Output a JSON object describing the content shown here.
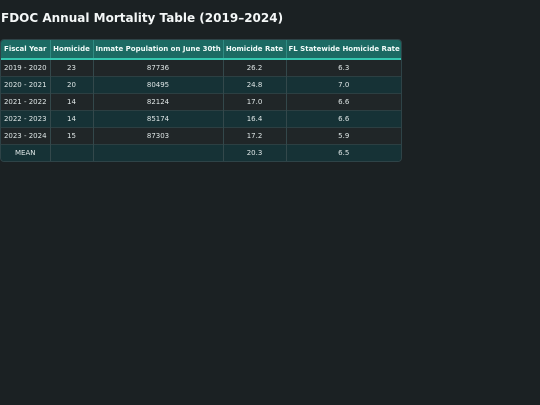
{
  "page": {
    "title": "FDOC Annual Mortality Table (2019–2024)"
  },
  "table": {
    "headers": [
      "Fiscal Year",
      "Homicide",
      "Inmate Population on June 30th",
      "Homicide Rate",
      "FL Statewide Homicide Rate"
    ],
    "rows": [
      [
        "2019 - 2020",
        "23",
        "87736",
        "26.2",
        "6.3"
      ],
      [
        "2020 - 2021",
        "20",
        "80495",
        "24.8",
        "7.0"
      ],
      [
        "2021 - 2022",
        "14",
        "82124",
        "17.0",
        "6.6"
      ],
      [
        "2022 - 2023",
        "14",
        "85174",
        "16.4",
        "6.6"
      ],
      [
        "2023 - 2024",
        "15",
        "87303",
        "17.2",
        "5.9"
      ],
      [
        "MEAN",
        "",
        "",
        "20.3",
        "6.5"
      ]
    ]
  },
  "colors": {
    "background": "#1b2123",
    "header_bg": "#1c6a63",
    "header_accent": "#35c7b0",
    "row_dark": "#202628",
    "row_teal": "#163236"
  }
}
